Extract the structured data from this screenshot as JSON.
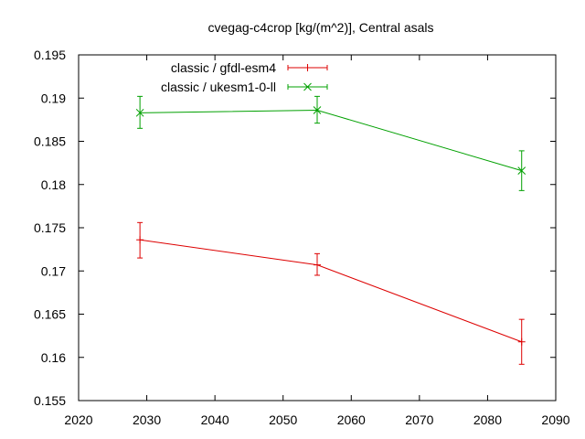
{
  "chart_data": {
    "type": "line",
    "title": "cvegag-c4crop [kg/(m^2)], Central asals",
    "xlabel": "",
    "ylabel": "",
    "xlim": [
      2020,
      2090
    ],
    "ylim": [
      0.155,
      0.195
    ],
    "x_ticks": [
      2020,
      2030,
      2040,
      2050,
      2060,
      2070,
      2080,
      2090
    ],
    "x_tick_labels": [
      "2020",
      "2030",
      "2040",
      "2050",
      "2060",
      "2070",
      "2080",
      "2090"
    ],
    "y_ticks": [
      0.155,
      0.16,
      0.165,
      0.17,
      0.175,
      0.18,
      0.185,
      0.19,
      0.195
    ],
    "y_tick_labels": [
      "0.155",
      "0.16",
      "0.165",
      "0.17",
      "0.175",
      "0.18",
      "0.185",
      "0.19",
      "0.195"
    ],
    "grid": false,
    "legend_position": "top-center",
    "series": [
      {
        "name": "classic / gfdl-esm4",
        "color": "#dd0000",
        "marker": "plus",
        "x": [
          2029,
          2055,
          2085
        ],
        "y": [
          0.1736,
          0.1707,
          0.1618
        ],
        "err_low": [
          0.1715,
          0.1695,
          0.1592
        ],
        "err_high": [
          0.1756,
          0.172,
          0.1644
        ]
      },
      {
        "name": "classic / ukesm1-0-ll",
        "color": "#00a000",
        "marker": "cross",
        "x": [
          2029,
          2055,
          2085
        ],
        "y": [
          0.1883,
          0.1886,
          0.1816
        ],
        "err_low": [
          0.1865,
          0.1871,
          0.1793
        ],
        "err_high": [
          0.1902,
          0.1902,
          0.1839
        ]
      }
    ]
  }
}
